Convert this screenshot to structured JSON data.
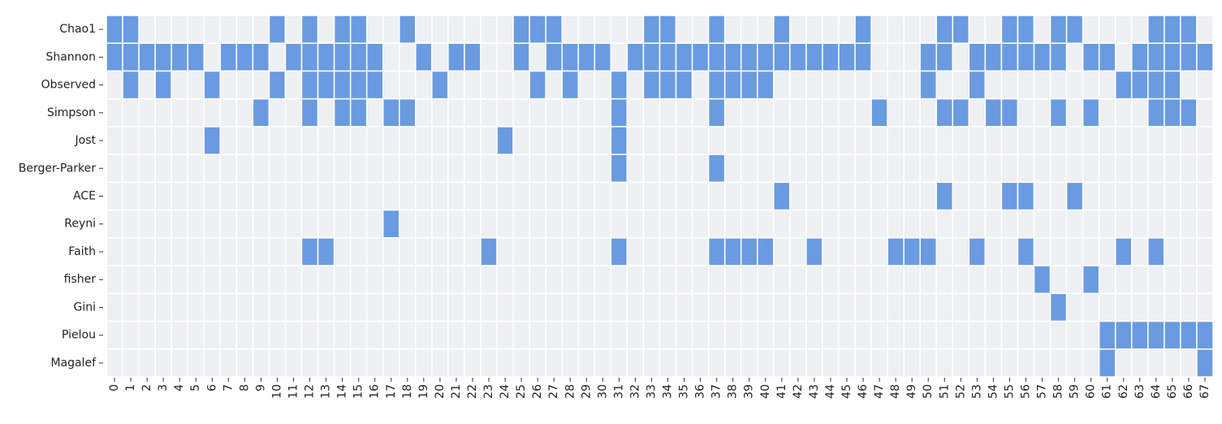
{
  "chart_data": {
    "type": "heatmap",
    "rows": [
      "Chao1",
      "Shannon",
      "Observed",
      "Simpson",
      "Jost",
      "Berger-Parker",
      "ACE",
      "Reyni",
      "Faith",
      "fisher",
      "Gini",
      "Pielou",
      "Magalef"
    ],
    "columns": [
      0,
      1,
      2,
      3,
      4,
      5,
      6,
      7,
      8,
      9,
      10,
      11,
      12,
      13,
      14,
      15,
      16,
      17,
      18,
      19,
      20,
      21,
      22,
      23,
      24,
      25,
      26,
      27,
      28,
      29,
      30,
      31,
      32,
      33,
      34,
      35,
      36,
      37,
      38,
      39,
      40,
      41,
      42,
      43,
      44,
      45,
      46,
      47,
      48,
      49,
      50,
      51,
      52,
      53,
      54,
      55,
      56,
      57,
      58,
      59,
      60,
      61,
      62,
      63,
      64,
      65,
      66,
      67
    ],
    "colors": [
      "#eef0f3",
      "#6a9be0"
    ],
    "values": [
      [
        1,
        1,
        0,
        0,
        0,
        0,
        0,
        0,
        0,
        0,
        1,
        0,
        1,
        0,
        1,
        1,
        0,
        0,
        1,
        0,
        0,
        0,
        0,
        0,
        0,
        1,
        1,
        1,
        0,
        0,
        0,
        0,
        0,
        1,
        1,
        0,
        0,
        1,
        0,
        0,
        0,
        1,
        0,
        0,
        0,
        0,
        1,
        0,
        0,
        0,
        0,
        1,
        1,
        0,
        0,
        1,
        1,
        0,
        1,
        1,
        0,
        0,
        0,
        0,
        1,
        1,
        1,
        0
      ],
      [
        1,
        1,
        1,
        1,
        1,
        1,
        0,
        1,
        1,
        1,
        0,
        1,
        1,
        1,
        1,
        1,
        1,
        0,
        0,
        1,
        0,
        1,
        1,
        0,
        0,
        1,
        0,
        1,
        1,
        1,
        1,
        0,
        1,
        1,
        1,
        1,
        1,
        1,
        1,
        1,
        1,
        1,
        1,
        1,
        1,
        1,
        1,
        0,
        0,
        0,
        1,
        1,
        0,
        1,
        1,
        1,
        1,
        1,
        1,
        0,
        1,
        1,
        0,
        1,
        1,
        1,
        1,
        1
      ],
      [
        0,
        1,
        0,
        1,
        0,
        0,
        1,
        0,
        0,
        0,
        1,
        0,
        1,
        1,
        1,
        1,
        1,
        0,
        0,
        0,
        1,
        0,
        0,
        0,
        0,
        0,
        1,
        0,
        1,
        0,
        0,
        1,
        0,
        1,
        1,
        1,
        0,
        1,
        1,
        1,
        1,
        0,
        0,
        0,
        0,
        0,
        0,
        0,
        0,
        0,
        1,
        0,
        0,
        1,
        0,
        0,
        0,
        0,
        0,
        0,
        0,
        0,
        1,
        1,
        1,
        1,
        0,
        0
      ],
      [
        0,
        0,
        0,
        0,
        0,
        0,
        0,
        0,
        0,
        1,
        0,
        0,
        1,
        0,
        1,
        1,
        0,
        1,
        1,
        0,
        0,
        0,
        0,
        0,
        0,
        0,
        0,
        0,
        0,
        0,
        0,
        1,
        0,
        0,
        0,
        0,
        0,
        1,
        0,
        0,
        0,
        0,
        0,
        0,
        0,
        0,
        0,
        1,
        0,
        0,
        0,
        1,
        1,
        0,
        1,
        1,
        0,
        0,
        1,
        0,
        1,
        0,
        0,
        0,
        1,
        1,
        1,
        0
      ],
      [
        0,
        0,
        0,
        0,
        0,
        0,
        1,
        0,
        0,
        0,
        0,
        0,
        0,
        0,
        0,
        0,
        0,
        0,
        0,
        0,
        0,
        0,
        0,
        0,
        1,
        0,
        0,
        0,
        0,
        0,
        0,
        1,
        0,
        0,
        0,
        0,
        0,
        0,
        0,
        0,
        0,
        0,
        0,
        0,
        0,
        0,
        0,
        0,
        0,
        0,
        0,
        0,
        0,
        0,
        0,
        0,
        0,
        0,
        0,
        0,
        0,
        0,
        0,
        0,
        0,
        0,
        0,
        0
      ],
      [
        0,
        0,
        0,
        0,
        0,
        0,
        0,
        0,
        0,
        0,
        0,
        0,
        0,
        0,
        0,
        0,
        0,
        0,
        0,
        0,
        0,
        0,
        0,
        0,
        0,
        0,
        0,
        0,
        0,
        0,
        0,
        1,
        0,
        0,
        0,
        0,
        0,
        1,
        0,
        0,
        0,
        0,
        0,
        0,
        0,
        0,
        0,
        0,
        0,
        0,
        0,
        0,
        0,
        0,
        0,
        0,
        0,
        0,
        0,
        0,
        0,
        0,
        0,
        0,
        0,
        0,
        0,
        0
      ],
      [
        0,
        0,
        0,
        0,
        0,
        0,
        0,
        0,
        0,
        0,
        0,
        0,
        0,
        0,
        0,
        0,
        0,
        0,
        0,
        0,
        0,
        0,
        0,
        0,
        0,
        0,
        0,
        0,
        0,
        0,
        0,
        0,
        0,
        0,
        0,
        0,
        0,
        0,
        0,
        0,
        0,
        1,
        0,
        0,
        0,
        0,
        0,
        0,
        0,
        0,
        0,
        1,
        0,
        0,
        0,
        1,
        1,
        0,
        0,
        1,
        0,
        0,
        0,
        0,
        0,
        0,
        0,
        0
      ],
      [
        0,
        0,
        0,
        0,
        0,
        0,
        0,
        0,
        0,
        0,
        0,
        0,
        0,
        0,
        0,
        0,
        0,
        1,
        0,
        0,
        0,
        0,
        0,
        0,
        0,
        0,
        0,
        0,
        0,
        0,
        0,
        0,
        0,
        0,
        0,
        0,
        0,
        0,
        0,
        0,
        0,
        0,
        0,
        0,
        0,
        0,
        0,
        0,
        0,
        0,
        0,
        0,
        0,
        0,
        0,
        0,
        0,
        0,
        0,
        0,
        0,
        0,
        0,
        0,
        0,
        0,
        0,
        0
      ],
      [
        0,
        0,
        0,
        0,
        0,
        0,
        0,
        0,
        0,
        0,
        0,
        0,
        1,
        1,
        0,
        0,
        0,
        0,
        0,
        0,
        0,
        0,
        0,
        1,
        0,
        0,
        0,
        0,
        0,
        0,
        0,
        1,
        0,
        0,
        0,
        0,
        0,
        1,
        1,
        1,
        1,
        0,
        0,
        1,
        0,
        0,
        0,
        0,
        1,
        1,
        1,
        0,
        0,
        1,
        0,
        0,
        1,
        0,
        0,
        0,
        0,
        0,
        1,
        0,
        1,
        0,
        0,
        0
      ],
      [
        0,
        0,
        0,
        0,
        0,
        0,
        0,
        0,
        0,
        0,
        0,
        0,
        0,
        0,
        0,
        0,
        0,
        0,
        0,
        0,
        0,
        0,
        0,
        0,
        0,
        0,
        0,
        0,
        0,
        0,
        0,
        0,
        0,
        0,
        0,
        0,
        0,
        0,
        0,
        0,
        0,
        0,
        0,
        0,
        0,
        0,
        0,
        0,
        0,
        0,
        0,
        0,
        0,
        0,
        0,
        0,
        0,
        1,
        0,
        0,
        1,
        0,
        0,
        0,
        0,
        0,
        0,
        0
      ],
      [
        0,
        0,
        0,
        0,
        0,
        0,
        0,
        0,
        0,
        0,
        0,
        0,
        0,
        0,
        0,
        0,
        0,
        0,
        0,
        0,
        0,
        0,
        0,
        0,
        0,
        0,
        0,
        0,
        0,
        0,
        0,
        0,
        0,
        0,
        0,
        0,
        0,
        0,
        0,
        0,
        0,
        0,
        0,
        0,
        0,
        0,
        0,
        0,
        0,
        0,
        0,
        0,
        0,
        0,
        0,
        0,
        0,
        0,
        1,
        0,
        0,
        0,
        0,
        0,
        0,
        0,
        0,
        0
      ],
      [
        0,
        0,
        0,
        0,
        0,
        0,
        0,
        0,
        0,
        0,
        0,
        0,
        0,
        0,
        0,
        0,
        0,
        0,
        0,
        0,
        0,
        0,
        0,
        0,
        0,
        0,
        0,
        0,
        0,
        0,
        0,
        0,
        0,
        0,
        0,
        0,
        0,
        0,
        0,
        0,
        0,
        0,
        0,
        0,
        0,
        0,
        0,
        0,
        0,
        0,
        0,
        0,
        0,
        0,
        0,
        0,
        0,
        0,
        0,
        0,
        0,
        1,
        1,
        1,
        1,
        1,
        1,
        1
      ],
      [
        0,
        0,
        0,
        0,
        0,
        0,
        0,
        0,
        0,
        0,
        0,
        0,
        0,
        0,
        0,
        0,
        0,
        0,
        0,
        0,
        0,
        0,
        0,
        0,
        0,
        0,
        0,
        0,
        0,
        0,
        0,
        0,
        0,
        0,
        0,
        0,
        0,
        0,
        0,
        0,
        0,
        0,
        0,
        0,
        0,
        0,
        0,
        0,
        0,
        0,
        0,
        0,
        0,
        0,
        0,
        0,
        0,
        0,
        0,
        0,
        0,
        1,
        0,
        0,
        0,
        0,
        0,
        1
      ]
    ]
  }
}
